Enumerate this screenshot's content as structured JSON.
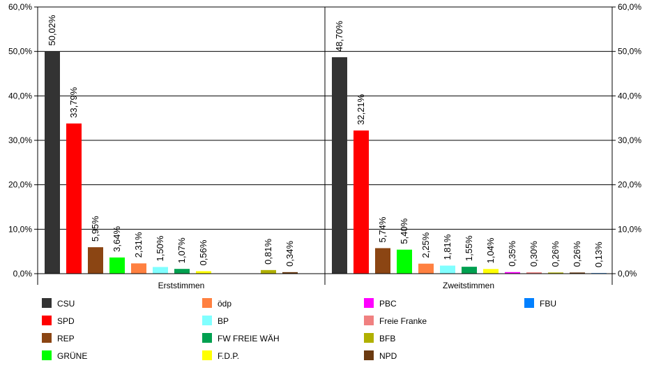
{
  "chart_data": {
    "type": "bar",
    "title": "",
    "xlabel": "",
    "ylabel": "",
    "ylim": [
      0,
      60
    ],
    "y_ticks": [
      "0,0%",
      "10,0%",
      "20,0%",
      "30,0%",
      "40,0%",
      "50,0%",
      "60,0%"
    ],
    "y_axis_sides": "left-and-right",
    "grid": true,
    "legend_position": "bottom",
    "categories": [
      "Erststimmen",
      "Zweitstimmen"
    ],
    "parties": [
      {
        "name": "CSU",
        "color": "#333333"
      },
      {
        "name": "SPD",
        "color": "#ff0000"
      },
      {
        "name": "REP",
        "color": "#8b4513"
      },
      {
        "name": "GRÜNE",
        "color": "#00ff00"
      },
      {
        "name": "ödp",
        "color": "#ff8040"
      },
      {
        "name": "BP",
        "color": "#80ffff"
      },
      {
        "name": "FW FREIE WÄH",
        "color": "#00a050"
      },
      {
        "name": "F.D.P.",
        "color": "#ffff00"
      },
      {
        "name": "PBC",
        "color": "#ff00ff"
      },
      {
        "name": "Freie Franke",
        "color": "#f08080"
      },
      {
        "name": "BFB",
        "color": "#b0b000"
      },
      {
        "name": "NPD",
        "color": "#6b3a10"
      },
      {
        "name": "FBU",
        "color": "#0080ff"
      }
    ],
    "groups": [
      {
        "label": "Erststimmen",
        "bars": [
          {
            "party": "CSU",
            "value": 50.02,
            "label": "50,02%"
          },
          {
            "party": "SPD",
            "value": 33.79,
            "label": "33,79%"
          },
          {
            "party": "REP",
            "value": 5.95,
            "label": "5,95%"
          },
          {
            "party": "GRÜNE",
            "value": 3.64,
            "label": "3,64%"
          },
          {
            "party": "ödp",
            "value": 2.31,
            "label": "2,31%"
          },
          {
            "party": "BP",
            "value": 1.5,
            "label": "1,50%"
          },
          {
            "party": "FW FREIE WÄH",
            "value": 1.07,
            "label": "1,07%"
          },
          {
            "party": "F.D.P.",
            "value": 0.56,
            "label": "0,56%"
          },
          {
            "party": "PBC",
            "value": null,
            "label": ""
          },
          {
            "party": "Freie Franke",
            "value": null,
            "label": ""
          },
          {
            "party": "BFB",
            "value": 0.81,
            "label": "0,81%"
          },
          {
            "party": "NPD",
            "value": 0.34,
            "label": "0,34%"
          }
        ]
      },
      {
        "label": "Zweitstimmen",
        "bars": [
          {
            "party": "CSU",
            "value": 48.7,
            "label": "48,70%"
          },
          {
            "party": "SPD",
            "value": 32.21,
            "label": "32,21%"
          },
          {
            "party": "REP",
            "value": 5.74,
            "label": "5,74%"
          },
          {
            "party": "GRÜNE",
            "value": 5.4,
            "label": "5,40%"
          },
          {
            "party": "ödp",
            "value": 2.25,
            "label": "2,25%"
          },
          {
            "party": "BP",
            "value": 1.81,
            "label": "1,81%"
          },
          {
            "party": "FW FREIE WÄH",
            "value": 1.55,
            "label": "1,55%"
          },
          {
            "party": "F.D.P.",
            "value": 1.04,
            "label": "1,04%"
          },
          {
            "party": "PBC",
            "value": 0.35,
            "label": "0,35%"
          },
          {
            "party": "Freie Franke",
            "value": 0.3,
            "label": "0,30%"
          },
          {
            "party": "BFB",
            "value": 0.26,
            "label": "0,26%"
          },
          {
            "party": "NPD",
            "value": 0.26,
            "label": "0,26%"
          },
          {
            "party": "FBU",
            "value": 0.13,
            "label": "0,13%"
          }
        ]
      }
    ],
    "legend_order": [
      "CSU",
      "SPD",
      "REP",
      "GRÜNE",
      "ödp",
      "BP",
      "FW FREIE WÄH",
      "F.D.P.",
      "PBC",
      "Freie Franke",
      "BFB",
      "NPD",
      "FBU"
    ]
  }
}
